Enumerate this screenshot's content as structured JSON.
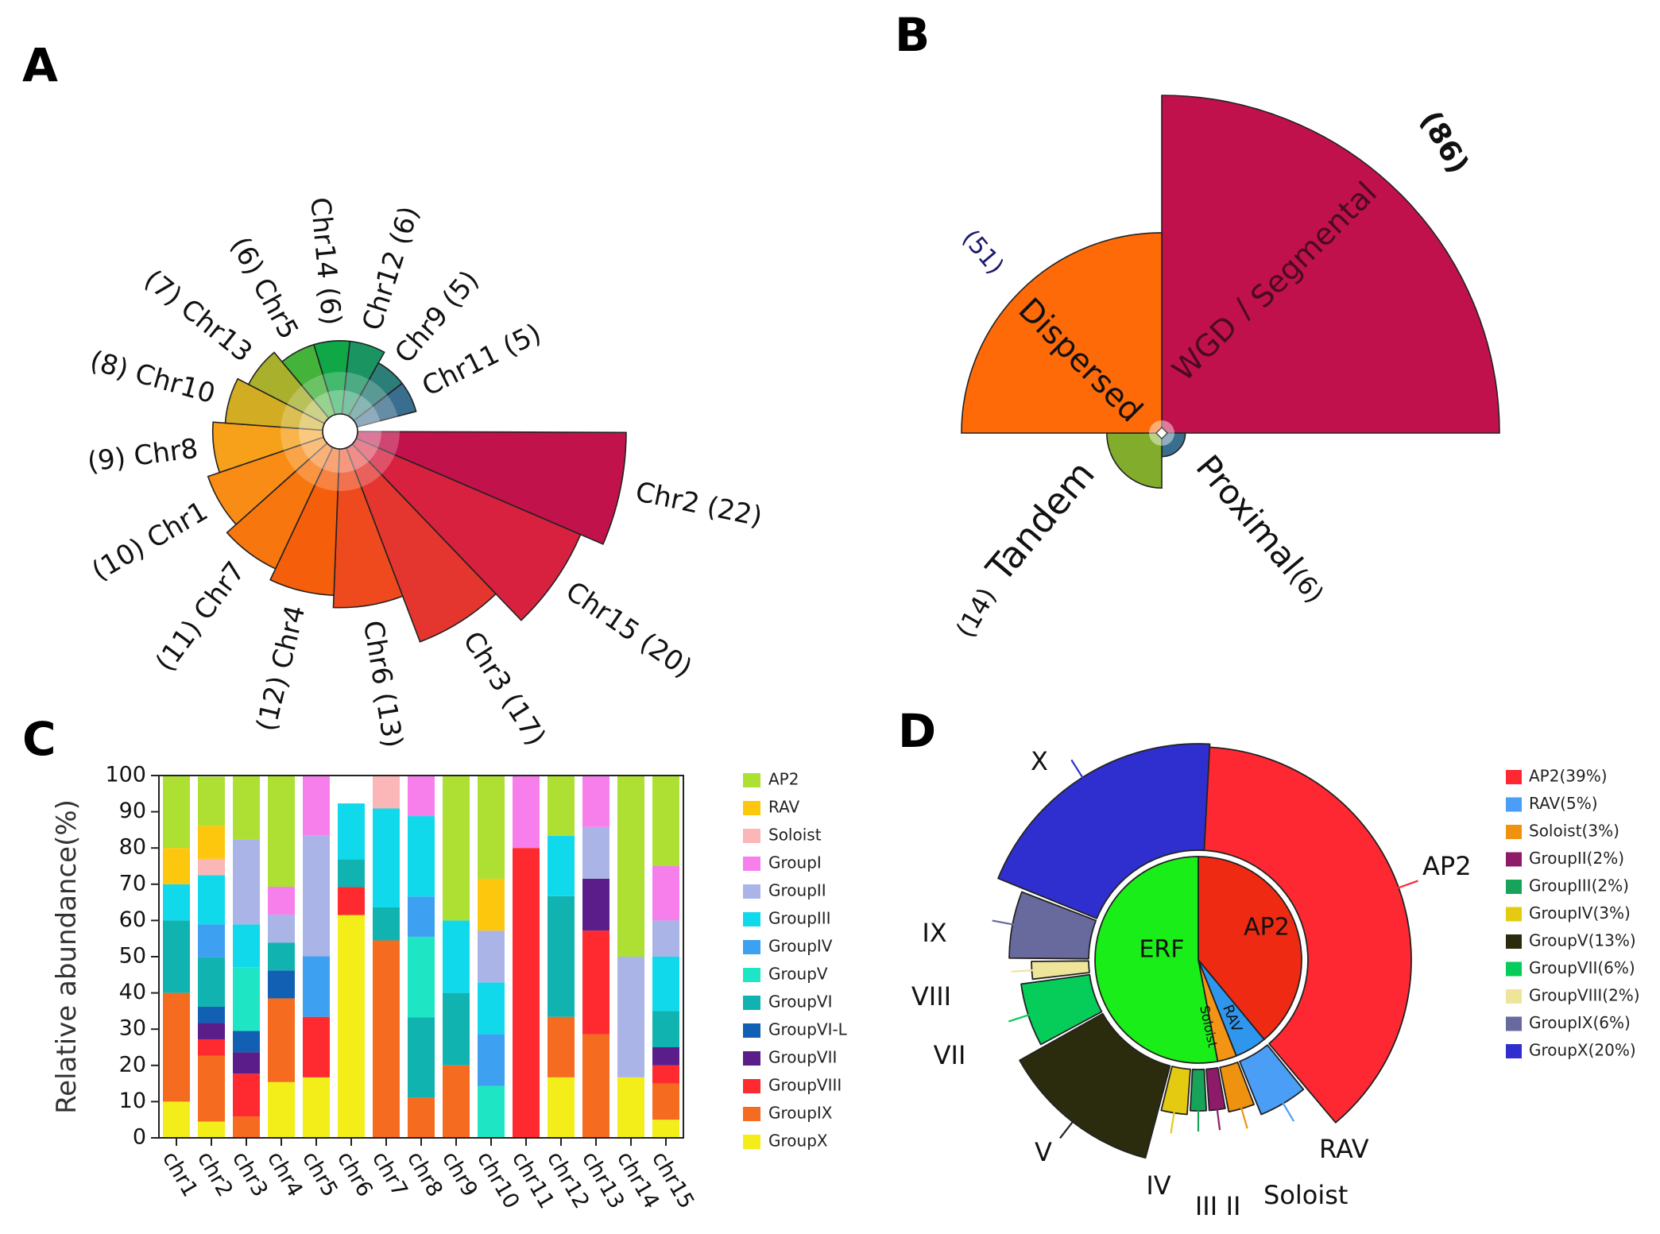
{
  "panels": {
    "A": "A",
    "B": "B",
    "C": "C",
    "D": "D"
  },
  "chart_data": [
    {
      "id": "A",
      "type": "pie",
      "subtype": "polar-rose",
      "title": "",
      "categories": [
        "Chr2",
        "Chr15",
        "Chr3",
        "Chr6",
        "Chr4",
        "Chr7",
        "Chr1",
        "Chr8",
        "Chr10",
        "Chr13",
        "Chr5",
        "Chr14",
        "Chr12",
        "Chr9",
        "Chr11"
      ],
      "values": [
        22,
        20,
        17,
        13,
        12,
        11,
        10,
        9,
        8,
        7,
        6,
        6,
        6,
        5,
        5
      ],
      "labels": [
        "Chr2 (22)",
        "Chr15 (20)",
        "Chr3 (17)",
        "Chr6 (13)",
        "(12) Chr4",
        "(11) Chr7",
        "(10) Chr1",
        "(9) Chr8",
        "(8) Chr10",
        "(7) Chr13",
        "(6) Chr5",
        "Chr14 (6)",
        "Chr12 (6)",
        "Chr9 (5)",
        "Chr11 (5)"
      ],
      "colors": [
        "#c2124c",
        "#d7213f",
        "#e5352f",
        "#ef4a1d",
        "#f55f0c",
        "#f7760e",
        "#f88c14",
        "#f7a01a",
        "#d2ad24",
        "#a8b02c",
        "#43b33a",
        "#10a746",
        "#1a9460",
        "#2c7e78",
        "#3a6e8e"
      ]
    },
    {
      "id": "B",
      "type": "pie",
      "subtype": "polar-rose",
      "title": "",
      "categories": [
        "WGD/Segmental",
        "Proximal",
        "Tandem",
        "Dispersed"
      ],
      "values": [
        86,
        6,
        14,
        51
      ],
      "colors": [
        "#c0114d",
        "#3a6e8e",
        "#82ad2c",
        "#ff6a09"
      ],
      "labels": {
        "wgd_value": "(86)",
        "wgd_name_a": "WGD",
        "wgd_sep": "/",
        "wgd_name_b": "Segmental",
        "dispersed_value": "(51)",
        "dispersed_name": "Dispersed",
        "tandem_value": "(14)",
        "tandem_name": "Tandem",
        "proximal_name": "Proximal",
        "proximal_value": "(6)"
      }
    },
    {
      "id": "C",
      "type": "bar",
      "subtype": "stacked-percent",
      "title": "",
      "xlabel": "",
      "ylabel": "Relative abundance(%)",
      "ylim": [
        0,
        100
      ],
      "yticks": [
        "0",
        "10",
        "20",
        "30",
        "40",
        "50",
        "60",
        "70",
        "80",
        "90",
        "100"
      ],
      "categories": [
        "chr1",
        "chr2",
        "chr3",
        "chr4",
        "chr5",
        "chr6",
        "chr7",
        "chr8",
        "chr9",
        "chr10",
        "chr11",
        "chr12",
        "chr13",
        "chr14",
        "chr15"
      ],
      "series": [
        {
          "name": "GroupX",
          "color": "#f3ee1a",
          "values": [
            10,
            4.5,
            0,
            15.4,
            16.7,
            61.5,
            0,
            0,
            0,
            0,
            0,
            16.7,
            0,
            16.7,
            5
          ]
        },
        {
          "name": "GroupIX",
          "color": "#f56b1f",
          "values": [
            30,
            18.2,
            5.9,
            23.1,
            0,
            0,
            54.5,
            11.1,
            20,
            0,
            0,
            16.7,
            28.6,
            0,
            10
          ]
        },
        {
          "name": "GroupVIII",
          "color": "#ff2a2f",
          "values": [
            0,
            4.5,
            11.8,
            0,
            16.7,
            7.7,
            0,
            0,
            0,
            0,
            80,
            0,
            28.6,
            0,
            5
          ]
        },
        {
          "name": "GroupVII",
          "color": "#5a1d8a",
          "values": [
            0,
            4.5,
            5.9,
            0,
            0,
            0,
            0,
            0,
            0,
            0,
            0,
            0,
            14.3,
            0,
            5
          ]
        },
        {
          "name": "GroupVI-L",
          "color": "#1160b4",
          "values": [
            0,
            4.5,
            5.9,
            7.7,
            0,
            0,
            0,
            0,
            0,
            0,
            0,
            0,
            0,
            0,
            0
          ]
        },
        {
          "name": "GroupVI",
          "color": "#11b3b0",
          "values": [
            20,
            13.6,
            0,
            7.7,
            0,
            7.7,
            9.1,
            22.2,
            20,
            0,
            0,
            33.3,
            0,
            0,
            10
          ]
        },
        {
          "name": "GroupV",
          "color": "#1ee6c4",
          "values": [
            0,
            0,
            17.6,
            0,
            0,
            0,
            0,
            22.2,
            0,
            14.3,
            0,
            0,
            0,
            0,
            0
          ]
        },
        {
          "name": "GroupIV",
          "color": "#3da0f0",
          "values": [
            0,
            9.1,
            0,
            0,
            16.7,
            0,
            0,
            11.1,
            0,
            14.3,
            0,
            0,
            0,
            0,
            0
          ]
        },
        {
          "name": "GroupIII",
          "color": "#11d9ec",
          "values": [
            10,
            13.6,
            11.8,
            0,
            0,
            15.4,
            27.3,
            22.2,
            20,
            14.3,
            0,
            16.7,
            0,
            0,
            15
          ]
        },
        {
          "name": "GroupII",
          "color": "#aab4e6",
          "values": [
            0,
            0,
            23.5,
            7.7,
            33.3,
            0,
            0,
            0,
            0,
            14.3,
            0,
            0,
            14.3,
            33.3,
            10
          ]
        },
        {
          "name": "GroupI",
          "color": "#f67fec",
          "values": [
            0,
            0,
            0,
            7.7,
            16.7,
            0,
            0,
            11.1,
            0,
            0,
            20,
            0,
            14.3,
            0,
            15
          ]
        },
        {
          "name": "Soloist",
          "color": "#fbb6b8",
          "values": [
            0,
            4.5,
            0,
            0,
            0,
            0,
            9.1,
            0,
            0,
            0,
            0,
            0,
            0,
            0,
            0
          ]
        },
        {
          "name": "RAV",
          "color": "#fcc70d",
          "values": [
            10,
            9.1,
            0,
            0,
            0,
            0,
            0,
            0,
            0,
            14.3,
            0,
            0,
            0,
            0,
            0
          ]
        },
        {
          "name": "AP2",
          "color": "#aee034",
          "values": [
            20,
            13.6,
            17.6,
            30.8,
            0,
            0,
            0,
            0,
            40,
            28.6,
            0,
            16.7,
            0,
            50,
            25
          ]
        }
      ],
      "legend": [
        "AP2",
        "RAV",
        "Soloist",
        "GroupI",
        "GroupII",
        "GroupIII",
        "GroupIV",
        "GroupV",
        "GroupVI",
        "GroupVI-L",
        "GroupVII",
        "GroupVIII",
        "GroupIX",
        "GroupX"
      ]
    },
    {
      "id": "D",
      "type": "pie",
      "subtype": "sunburst",
      "title": "",
      "inner": [
        {
          "name": "AP2",
          "label": "AP2",
          "value": 39,
          "color": "#ee2a12"
        },
        {
          "name": "RAV",
          "label": "RAV",
          "value": 5,
          "color": "#2f96ee"
        },
        {
          "name": "Soloist",
          "label": "Soloist",
          "value": 3,
          "color": "#f49415"
        },
        {
          "name": "ERF",
          "label": "ERF",
          "value": 53,
          "color": "#19ee19"
        }
      ],
      "outer": [
        {
          "name": "AP2",
          "label": "AP2",
          "value": 39,
          "color": "#fe2832"
        },
        {
          "name": "RAV",
          "label": "RAV",
          "value": 5,
          "color": "#4a9ef5"
        },
        {
          "name": "Soloist",
          "label": "Soloist",
          "value": 3,
          "color": "#ef920f"
        },
        {
          "name": "GroupII",
          "label": "II",
          "value": 2,
          "color": "#8e1b6a"
        },
        {
          "name": "GroupIII",
          "label": "III",
          "value": 2,
          "color": "#17a35a"
        },
        {
          "name": "GroupIV",
          "label": "IV",
          "value": 3,
          "color": "#e4cb12"
        },
        {
          "name": "GroupV",
          "label": "V",
          "value": 13,
          "color": "#2b2b0e"
        },
        {
          "name": "GroupVII",
          "label": "VII",
          "value": 6,
          "color": "#06cc5a"
        },
        {
          "name": "GroupVIII",
          "label": "VIII",
          "value": 2,
          "color": "#eee59a"
        },
        {
          "name": "GroupIX",
          "label": "IX",
          "value": 6,
          "color": "#686a9e"
        },
        {
          "name": "GroupX",
          "label": "X",
          "value": 20,
          "color": "#2f2fd0"
        }
      ],
      "legend": [
        "AP2(39%)",
        "RAV(5%)",
        "Soloist(3%)",
        "GroupII(2%)",
        "GroupIII(2%)",
        "GroupIV(3%)",
        "GroupV(13%)",
        "GroupVII(6%)",
        "GroupVIII(2%)",
        "GroupIX(6%)",
        "GroupX(20%)"
      ]
    }
  ]
}
